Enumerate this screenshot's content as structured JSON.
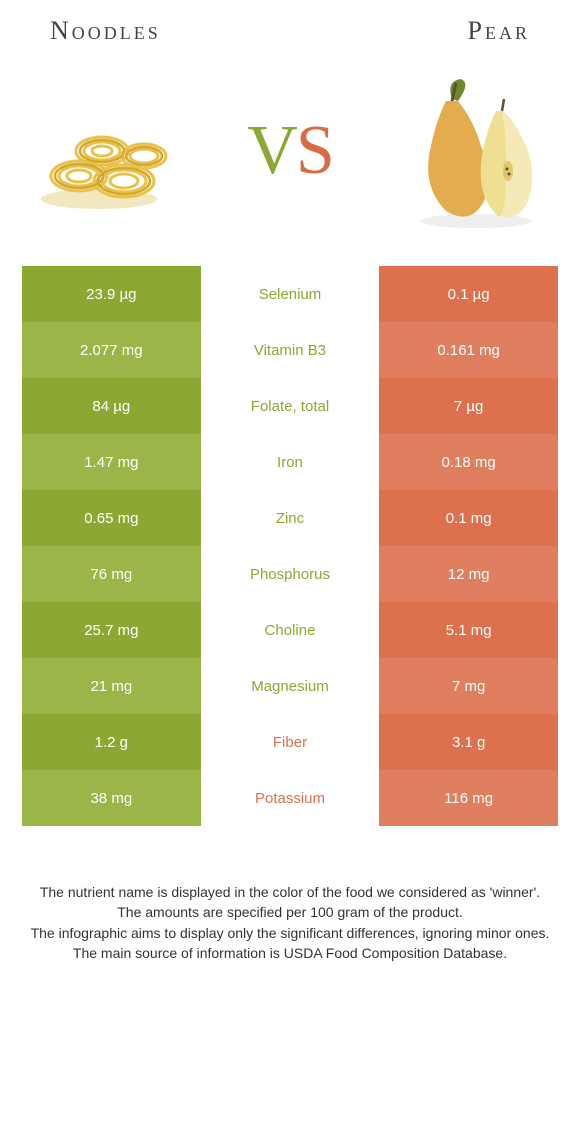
{
  "header": {
    "left_title": "Noodles",
    "right_title": "Pear"
  },
  "vs": {
    "v": "V",
    "s": "S"
  },
  "colors": {
    "left_odd": "#8aa832",
    "left_even": "#9bb648",
    "right_odd": "#dd714e",
    "right_even": "#e07f5f",
    "mid_left_winner": "#8aa832",
    "mid_right_winner": "#dd714e",
    "background": "#ffffff",
    "text": "#333333"
  },
  "rows": [
    {
      "left": "23.9 µg",
      "label": "Selenium",
      "right": "0.1 µg",
      "winner": "left"
    },
    {
      "left": "2.077 mg",
      "label": "Vitamin B3",
      "right": "0.161 mg",
      "winner": "left"
    },
    {
      "left": "84 µg",
      "label": "Folate, total",
      "right": "7 µg",
      "winner": "left"
    },
    {
      "left": "1.47 mg",
      "label": "Iron",
      "right": "0.18 mg",
      "winner": "left"
    },
    {
      "left": "0.65 mg",
      "label": "Zinc",
      "right": "0.1 mg",
      "winner": "left"
    },
    {
      "left": "76 mg",
      "label": "Phosphorus",
      "right": "12 mg",
      "winner": "left"
    },
    {
      "left": "25.7 mg",
      "label": "Choline",
      "right": "5.1 mg",
      "winner": "left"
    },
    {
      "left": "21 mg",
      "label": "Magnesium",
      "right": "7 mg",
      "winner": "left"
    },
    {
      "left": "1.2 g",
      "label": "Fiber",
      "right": "3.1 g",
      "winner": "right"
    },
    {
      "left": "38 mg",
      "label": "Potassium",
      "right": "116 mg",
      "winner": "right"
    }
  ],
  "footer": {
    "line1": "The nutrient name is displayed in the color of the food we considered as 'winner'.",
    "line2": "The amounts are specified per 100 gram of the product.",
    "line3": "The infographic aims to display only the significant differences, ignoring minor ones.",
    "line4": "The main source of information is USDA Food Composition Database."
  },
  "fonts": {
    "header_family": "Georgia, serif",
    "header_size_pt": 20,
    "vs_size_pt": 52,
    "cell_size_pt": 11,
    "footer_size_pt": 10
  }
}
